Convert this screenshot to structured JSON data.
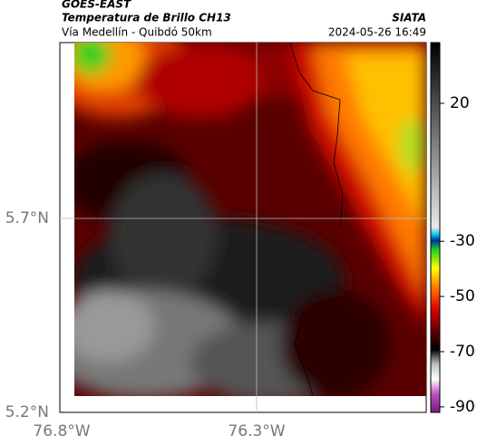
{
  "header": {
    "source": "GOES-EAST",
    "title": "Temperatura de Brillo CH13",
    "region": "Vía Medellín - Quibdó 50km",
    "credit": "SIATA",
    "timestamp": "2024-05-26 16:49"
  },
  "map": {
    "lat_ticks": [
      "5.7°N",
      "5.2°N"
    ],
    "lon_ticks": [
      "76.8°W",
      "76.3°W"
    ]
  },
  "colorbar": {
    "range": [
      -92,
      42
    ],
    "ticks": [
      20,
      -30,
      -50,
      -70,
      -90
    ]
  }
}
